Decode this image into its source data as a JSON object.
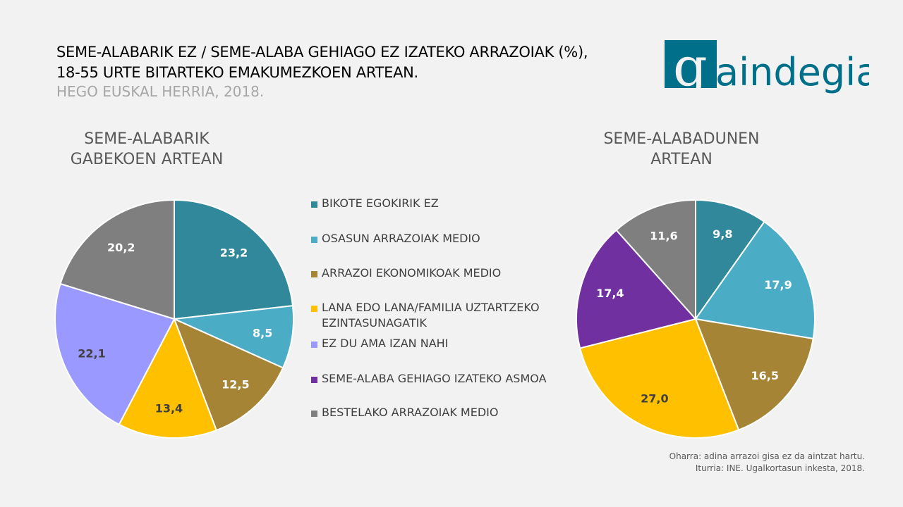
{
  "title": {
    "line1": "SEME-ALABARIK EZ / SEME-ALABA GEHIAGO EZ IZATEKO ARRAZOIAK (%),",
    "line2": "18-55 URTE BITARTEKO EMAKUMEZKOEN ARTEAN.",
    "line3": "HEGO EUSKAL HERRIA, 2018."
  },
  "logo": {
    "text": "gaindegia",
    "color": "#006f8a"
  },
  "legend": [
    {
      "label": "BIKOTE EGOKIRIK EZ",
      "color": "#31889b"
    },
    {
      "label": "OSASUN ARRAZOIAK MEDIO",
      "color": "#4bacc6"
    },
    {
      "label": "ARRAZOI EKONOMIKOAK MEDIO",
      "color": "#a58535"
    },
    {
      "label": "LANA EDO LANA/FAMILIA UZTARTZEKO",
      "label2": "EZINTASUNAGATIK",
      "color": "#ffc000"
    },
    {
      "label": "EZ DU AMA IZAN NAHI",
      "color": "#9999ff"
    },
    {
      "label": "SEME-ALABA GEHIAGO IZATEKO ASMOA",
      "color": "#7030a0"
    },
    {
      "label": "BESTELAKO ARRAZOIAK MEDIO",
      "color": "#7f7f7f"
    }
  ],
  "chart_data": [
    {
      "type": "pie",
      "title_line1": "SEME-ALABARIK",
      "title_line2": "GABEKOEN ARTEAN",
      "categories": [
        "BIKOTE EGOKIRIK EZ",
        "OSASUN ARRAZOIAK MEDIO",
        "ARRAZOI EKONOMIKOAK MEDIO",
        "LANA EDO LANA/FAMILIA UZTARTZEKO EZINTASUNAGATIK",
        "EZ DU AMA IZAN NAHI",
        "BESTELAKO ARRAZOIAK MEDIO"
      ],
      "values": [
        23.2,
        8.5,
        12.5,
        13.4,
        22.1,
        20.2
      ],
      "labels": [
        "23,2",
        "8,5",
        "12,5",
        "13,4",
        "22,1",
        "20,2"
      ],
      "colors": [
        "#31889b",
        "#4bacc6",
        "#a58535",
        "#ffc000",
        "#9999ff",
        "#7f7f7f"
      ]
    },
    {
      "type": "pie",
      "title_line1": "SEME-ALABADUNEN",
      "title_line2": "ARTEAN",
      "categories": [
        "BIKOTE EGOKIRIK EZ",
        "OSASUN ARRAZOIAK MEDIO",
        "ARRAZOI EKONOMIKOAK MEDIO",
        "LANA EDO LANA/FAMILIA UZTARTZEKO EZINTASUNAGATIK",
        "SEME-ALABA GEHIAGO IZATEKO ASMOA",
        "BESTELAKO ARRAZOIAK MEDIO"
      ],
      "values": [
        9.8,
        17.9,
        16.5,
        27.0,
        17.4,
        11.6
      ],
      "labels": [
        "9,8",
        "17,9",
        "16,5",
        "27,0",
        "17,4",
        "11,6"
      ],
      "colors": [
        "#31889b",
        "#4bacc6",
        "#a58535",
        "#ffc000",
        "#7030a0",
        "#7f7f7f"
      ]
    }
  ],
  "note": {
    "line1": "Oharra:  adina  arrazoi  gisa  ez  da  aintzat  hartu.",
    "line2": "Iturria: INE. Ugalkortasun  inkesta,  2018."
  }
}
